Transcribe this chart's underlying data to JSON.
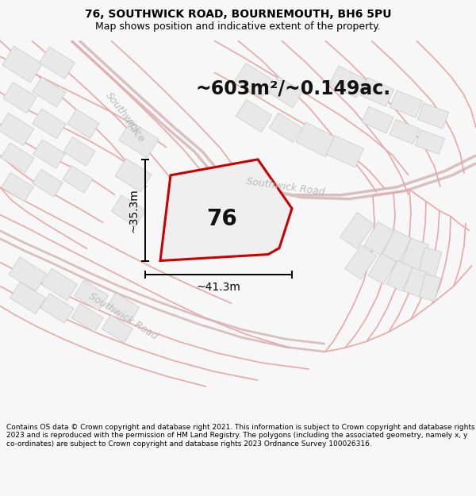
{
  "title": "76, SOUTHWICK ROAD, BOURNEMOUTH, BH6 5PU",
  "subtitle": "Map shows position and indicative extent of the property.",
  "area_text": "~603m²/~0.149ac.",
  "width_label": "~41.3m",
  "height_label": "~35.3m",
  "number_label": "76",
  "footer": "Contains OS data © Crown copyright and database right 2021. This information is subject to Crown copyright and database rights 2023 and is reproduced with the permission of HM Land Registry. The polygons (including the associated geometry, namely x, y co-ordinates) are subject to Crown copyright and database rights 2023 Ordnance Survey 100026316.",
  "bg_color": "#f7f7f7",
  "map_bg": "#f5f5f5",
  "road_line_color": "#e8a8a8",
  "road_main_color": "#e0c0c0",
  "building_face": "#e8e8e8",
  "building_edge": "#cccccc",
  "property_color": "#cc0000",
  "property_lw": 2.2,
  "dim_color": "#000000",
  "road_label_color": "#bbbbbb",
  "title_fontsize": 10,
  "subtitle_fontsize": 9,
  "area_fontsize": 17,
  "number_fontsize": 20,
  "dim_fontsize": 10,
  "footer_fontsize": 6.5,
  "road_label_fontsize": 9
}
